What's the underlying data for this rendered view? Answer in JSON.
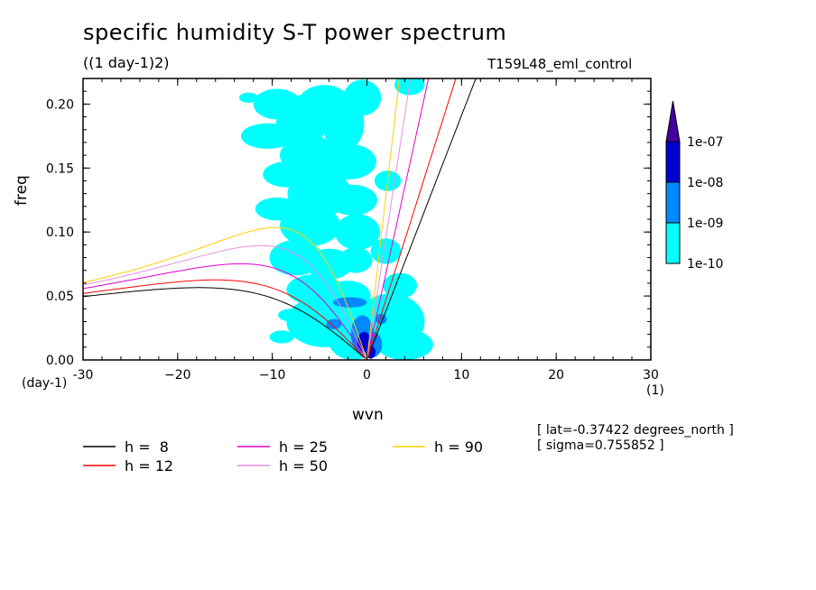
{
  "chart_data": {
    "type": "heatmap",
    "title": "specific humidity S-T power spectrum",
    "units": "((1 day-1)2)",
    "run_label": "T159L48_eml_control",
    "xlabel": "wvn",
    "ylabel": "freq",
    "x_unit_left": "(day-1)",
    "x_unit_right": "(1)",
    "xlim": [
      -30,
      30
    ],
    "ylim": [
      0,
      0.22
    ],
    "x_ticks": [
      {
        "value": -30,
        "label": "-30"
      },
      {
        "value": -20,
        "label": "−20"
      },
      {
        "value": -10,
        "label": "−10"
      },
      {
        "value": 0,
        "label": "0"
      },
      {
        "value": 10,
        "label": "10"
      },
      {
        "value": 20,
        "label": "20"
      },
      {
        "value": 30,
        "label": "30"
      }
    ],
    "y_ticks": [
      {
        "value": 0.0,
        "label": "0.00"
      },
      {
        "value": 0.05,
        "label": "0.05"
      },
      {
        "value": 0.1,
        "label": "0.10"
      },
      {
        "value": 0.15,
        "label": "0.15"
      },
      {
        "value": 0.2,
        "label": "0.20"
      }
    ],
    "color_levels": [
      {
        "label": "1e-10",
        "color": "#00ffff"
      },
      {
        "label": "1e-09",
        "color": "#0088ff"
      },
      {
        "label": "1e-08",
        "color": "#0000d0"
      },
      {
        "label": "1e-07",
        "color": "#4400a0"
      }
    ],
    "colorbar_top_color": "#4400a0",
    "contour_regions": [
      {
        "level": 0,
        "x": -9.5,
        "y": 0.2,
        "rx": 2.5,
        "ry": 0.012
      },
      {
        "level": 0,
        "x": -7,
        "y": 0.185,
        "rx": 2.6,
        "ry": 0.022
      },
      {
        "level": 0,
        "x": -4.5,
        "y": 0.2,
        "rx": 2.8,
        "ry": 0.015
      },
      {
        "level": 0,
        "x": -2.5,
        "y": 0.185,
        "rx": 2.2,
        "ry": 0.022
      },
      {
        "level": 0,
        "x": -0.5,
        "y": 0.205,
        "rx": 2.0,
        "ry": 0.014
      },
      {
        "level": 0,
        "x": -10.5,
        "y": 0.175,
        "rx": 2.8,
        "ry": 0.01
      },
      {
        "level": 0,
        "x": -6,
        "y": 0.16,
        "rx": 3.2,
        "ry": 0.015
      },
      {
        "level": 0,
        "x": -2,
        "y": 0.155,
        "rx": 3.0,
        "ry": 0.014
      },
      {
        "level": 0,
        "x": -8.5,
        "y": 0.145,
        "rx": 2.5,
        "ry": 0.01
      },
      {
        "level": 0,
        "x": -5,
        "y": 0.13,
        "rx": 3.4,
        "ry": 0.018
      },
      {
        "level": 0,
        "x": -1.5,
        "y": 0.125,
        "rx": 2.6,
        "ry": 0.012
      },
      {
        "level": 0,
        "x": -9.5,
        "y": 0.118,
        "rx": 2.3,
        "ry": 0.009
      },
      {
        "level": 0,
        "x": -6,
        "y": 0.105,
        "rx": 3.2,
        "ry": 0.016
      },
      {
        "level": 0,
        "x": -1,
        "y": 0.1,
        "rx": 2.4,
        "ry": 0.014
      },
      {
        "level": 0,
        "x": -7.5,
        "y": 0.08,
        "rx": 2.8,
        "ry": 0.014
      },
      {
        "level": 0,
        "x": -4,
        "y": 0.075,
        "rx": 2.5,
        "ry": 0.012
      },
      {
        "level": 0,
        "x": -1.2,
        "y": 0.078,
        "rx": 1.8,
        "ry": 0.01
      },
      {
        "level": 0,
        "x": -5.5,
        "y": 0.055,
        "rx": 3.0,
        "ry": 0.012
      },
      {
        "level": 0,
        "x": -2,
        "y": 0.05,
        "rx": 2.4,
        "ry": 0.012
      },
      {
        "level": 0,
        "x": -4.5,
        "y": 0.03,
        "rx": 4.0,
        "ry": 0.02
      },
      {
        "level": 0,
        "x": -1.5,
        "y": 0.02,
        "rx": 2.8,
        "ry": 0.02
      },
      {
        "level": 0,
        "x": 2.5,
        "y": 0.03,
        "rx": 3.6,
        "ry": 0.022
      },
      {
        "level": 0,
        "x": 4,
        "y": 0.012,
        "rx": 3.0,
        "ry": 0.012
      },
      {
        "level": 0,
        "x": 3.5,
        "y": 0.058,
        "rx": 1.8,
        "ry": 0.01
      },
      {
        "level": 0,
        "x": 2,
        "y": 0.085,
        "rx": 1.6,
        "ry": 0.01
      },
      {
        "level": 0,
        "x": 2.2,
        "y": 0.14,
        "rx": 1.4,
        "ry": 0.008
      },
      {
        "level": 0,
        "x": 4.5,
        "y": 0.215,
        "rx": 1.6,
        "ry": 0.008
      },
      {
        "level": 0,
        "x": -12.5,
        "y": 0.205,
        "rx": 1.0,
        "ry": 0.004
      },
      {
        "level": 0,
        "x": -8,
        "y": 0.035,
        "rx": 1.4,
        "ry": 0.005
      },
      {
        "level": 0,
        "x": -9,
        "y": 0.018,
        "rx": 1.3,
        "ry": 0.005
      },
      {
        "level": 0,
        "x": 5,
        "y": 0.035,
        "rx": 1.0,
        "ry": 0.005
      },
      {
        "level": 1,
        "x": -1.8,
        "y": 0.045,
        "rx": 1.8,
        "ry": 0.004
      },
      {
        "level": 1,
        "x": -0.5,
        "y": 0.02,
        "rx": 1.2,
        "ry": 0.015
      },
      {
        "level": 1,
        "x": 0.6,
        "y": 0.012,
        "rx": 1.0,
        "ry": 0.01
      },
      {
        "level": 1,
        "x": -3.5,
        "y": 0.028,
        "rx": 0.8,
        "ry": 0.004
      },
      {
        "level": 1,
        "x": 1.5,
        "y": 0.032,
        "rx": 0.6,
        "ry": 0.004
      },
      {
        "level": 2,
        "x": -0.3,
        "y": 0.014,
        "rx": 0.7,
        "ry": 0.008
      },
      {
        "level": 2,
        "x": 0.4,
        "y": 0.006,
        "rx": 0.5,
        "ry": 0.005
      }
    ],
    "series": [
      {
        "name": "h =  8",
        "h": 8,
        "color": "#000000"
      },
      {
        "name": "h = 12",
        "h": 12,
        "color": "#ff0000"
      },
      {
        "name": "h = 25",
        "h": 25,
        "color": "#e000c8"
      },
      {
        "name": "h = 50",
        "h": 50,
        "color": "#e890e0"
      },
      {
        "name": "h = 90",
        "h": 90,
        "color": "#ffd000"
      }
    ],
    "annotations": [
      "[ lat=-0.37422 degrees_north ]",
      "[ sigma=0.755852 ]"
    ]
  }
}
